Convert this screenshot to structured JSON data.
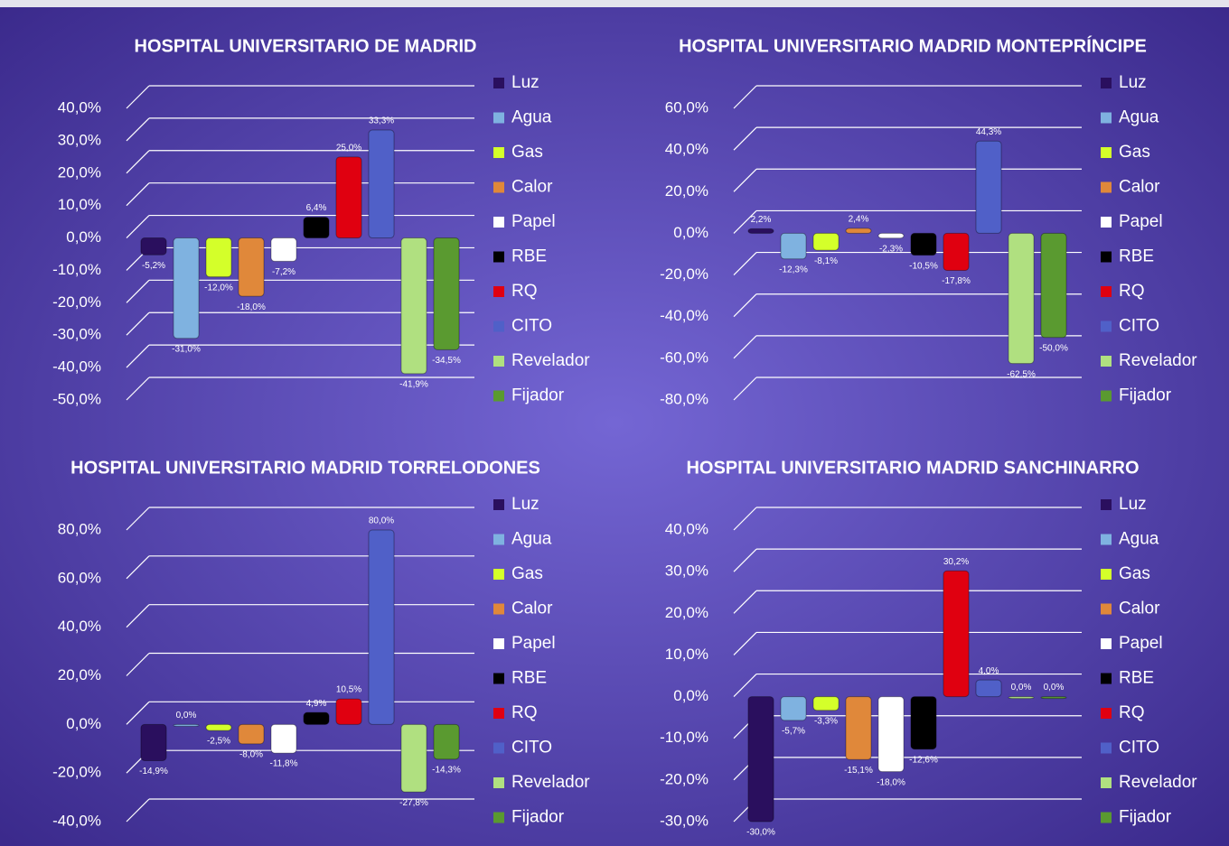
{
  "chart_data": [
    {
      "type": "bar",
      "title": "HOSPITAL UNIVERSITARIO DE MADRID",
      "categories": [
        "Luz",
        "Agua",
        "Gas",
        "Calor",
        "Papel",
        "RBE",
        "RQ",
        "CITO",
        "Revelador",
        "Fijador"
      ],
      "colors": [
        "#2a0f5e",
        "#7fb2e0",
        "#d4ff2a",
        "#e0883a",
        "#ffffff",
        "#000000",
        "#e00010",
        "#5060c8",
        "#b0e080",
        "#5a9a30"
      ],
      "values": [
        -5.2,
        -31.0,
        -12.0,
        -18.0,
        -7.2,
        6.4,
        25.0,
        33.3,
        -41.9,
        -34.5
      ],
      "value_labels": [
        "-5,2%",
        "-31,0%",
        "-12,0%",
        "-18,0%",
        "-7,2%",
        "6,4%",
        "25,0%",
        "33,3%",
        "-41,9%",
        "-34,5%"
      ],
      "ylim": [
        -50,
        40
      ],
      "yticks": [
        {
          "value": -50,
          "label": "-50,0%"
        },
        {
          "value": -40,
          "label": "-40,0%"
        },
        {
          "value": -30,
          "label": "-30,0%"
        },
        {
          "value": -20,
          "label": "-20,0%"
        },
        {
          "value": -10,
          "label": "-10,0%"
        },
        {
          "value": 0,
          "label": "0,0%"
        },
        {
          "value": 10,
          "label": "10,0%"
        },
        {
          "value": 20,
          "label": "20,0%"
        },
        {
          "value": 30,
          "label": "30,0%"
        },
        {
          "value": 40,
          "label": "40,0%"
        }
      ],
      "grid": true,
      "legend": "right"
    },
    {
      "type": "bar",
      "title": "HOSPITAL UNIVERSITARIO MADRID MONTEPRÍNCIPE",
      "categories": [
        "Luz",
        "Agua",
        "Gas",
        "Calor",
        "Papel",
        "RBE",
        "RQ",
        "CITO",
        "Revelador",
        "Fijador"
      ],
      "colors": [
        "#2a0f5e",
        "#7fb2e0",
        "#d4ff2a",
        "#e0883a",
        "#ffffff",
        "#000000",
        "#e00010",
        "#5060c8",
        "#b0e080",
        "#5a9a30"
      ],
      "values": [
        2.2,
        -12.3,
        -8.1,
        2.4,
        -2.3,
        -10.5,
        -17.8,
        44.3,
        -62.5,
        -50.0
      ],
      "value_labels": [
        "2,2%",
        "-12,3%",
        "-8,1%",
        "2,4%",
        "-2,3%",
        "-10,5%",
        "-17,8%",
        "44,3%",
        "-62,5%",
        "-50,0%"
      ],
      "ylim": [
        -80,
        60
      ],
      "yticks": [
        {
          "value": -80,
          "label": "-80,0%"
        },
        {
          "value": -60,
          "label": "-60,0%"
        },
        {
          "value": -40,
          "label": "-40,0%"
        },
        {
          "value": -20,
          "label": "-20,0%"
        },
        {
          "value": 0,
          "label": "0,0%"
        },
        {
          "value": 20,
          "label": "20,0%"
        },
        {
          "value": 40,
          "label": "40,0%"
        },
        {
          "value": 60,
          "label": "60,0%"
        }
      ],
      "grid": true,
      "legend": "right"
    },
    {
      "type": "bar",
      "title": "HOSPITAL UNIVERSITARIO MADRID TORRELODONES",
      "categories": [
        "Luz",
        "Agua",
        "Gas",
        "Calor",
        "Papel",
        "RBE",
        "RQ",
        "CITO",
        "Revelador",
        "Fijador"
      ],
      "colors": [
        "#2a0f5e",
        "#7fb2e0",
        "#d4ff2a",
        "#e0883a",
        "#ffffff",
        "#000000",
        "#e00010",
        "#5060c8",
        "#b0e080",
        "#5a9a30"
      ],
      "values": [
        -14.9,
        0.0,
        -2.5,
        -8.0,
        -11.8,
        4.9,
        10.5,
        80.0,
        -27.8,
        -14.3
      ],
      "value_labels": [
        "-14,9%",
        "0,0%",
        "-2,5%",
        "-8,0%",
        "-11,8%",
        "4,9%",
        "10,5%",
        "80,0%",
        "-27,8%",
        "-14,3%"
      ],
      "ylim": [
        -40,
        80
      ],
      "yticks": [
        {
          "value": -40,
          "label": "-40,0%"
        },
        {
          "value": -20,
          "label": "-20,0%"
        },
        {
          "value": 0,
          "label": "0,0%"
        },
        {
          "value": 20,
          "label": "20,0%"
        },
        {
          "value": 40,
          "label": "40,0%"
        },
        {
          "value": 60,
          "label": "60,0%"
        },
        {
          "value": 80,
          "label": "80,0%"
        }
      ],
      "grid": true,
      "legend": "right"
    },
    {
      "type": "bar",
      "title": "HOSPITAL UNIVERSITARIO MADRID SANCHINARRO",
      "categories": [
        "Luz",
        "Agua",
        "Gas",
        "Calor",
        "Papel",
        "RBE",
        "RQ",
        "CITO",
        "Revelador",
        "Fijador"
      ],
      "colors": [
        "#2a0f5e",
        "#7fb2e0",
        "#d4ff2a",
        "#e0883a",
        "#ffffff",
        "#000000",
        "#e00010",
        "#5060c8",
        "#b0e080",
        "#5a9a30"
      ],
      "values": [
        -30.0,
        -5.7,
        -3.3,
        -15.1,
        -18.0,
        -12.6,
        30.2,
        4.0,
        0.0,
        0.0
      ],
      "value_labels": [
        "-30,0%",
        "-5,7%",
        "-3,3%",
        "-15,1%",
        "-18,0%",
        "-12,6%",
        "30,2%",
        "4,0%",
        "0,0%",
        "0,0%"
      ],
      "ylim": [
        -30,
        40
      ],
      "yticks": [
        {
          "value": -30,
          "label": "-30,0%"
        },
        {
          "value": -20,
          "label": "-20,0%"
        },
        {
          "value": -10,
          "label": "-10,0%"
        },
        {
          "value": 0,
          "label": "0,0%"
        },
        {
          "value": 10,
          "label": "10,0%"
        },
        {
          "value": 20,
          "label": "20,0%"
        },
        {
          "value": 30,
          "label": "30,0%"
        },
        {
          "value": 40,
          "label": "40,0%"
        }
      ],
      "grid": true,
      "legend": "right"
    }
  ]
}
